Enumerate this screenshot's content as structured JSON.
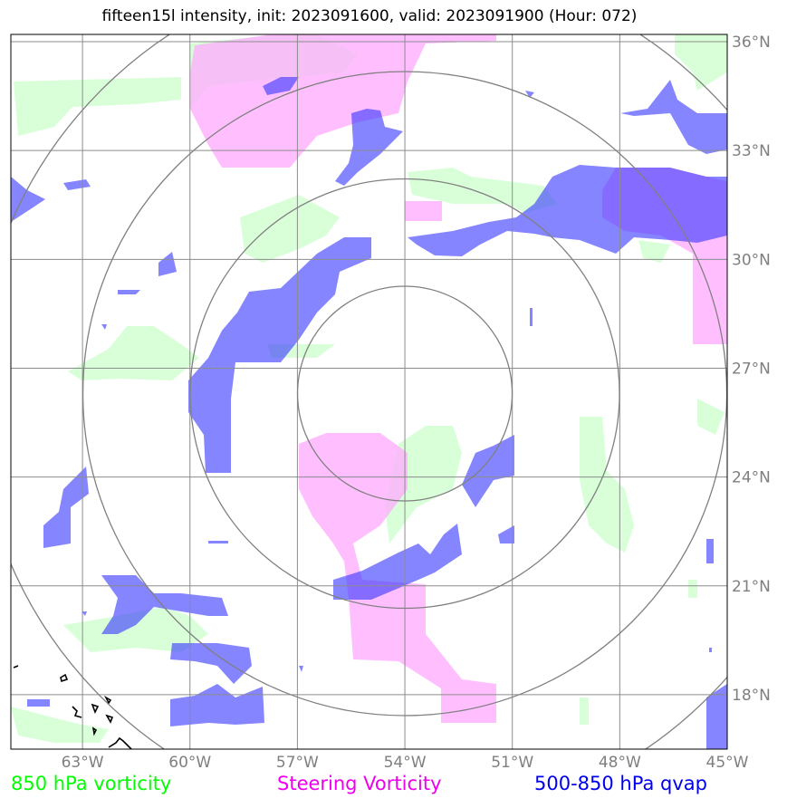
{
  "title": "fifteen15l intensity, init: 2023091600, valid: 2023091900 (Hour: 072)",
  "map": {
    "lon_range": [
      -65,
      -45
    ],
    "lat_range": [
      16.5,
      36.2
    ],
    "lon_ticks": [
      {
        "value": -63,
        "label": "63°W"
      },
      {
        "value": -60,
        "label": "60°W"
      },
      {
        "value": -57,
        "label": "57°W"
      },
      {
        "value": -54,
        "label": "54°W"
      },
      {
        "value": -51,
        "label": "51°W"
      },
      {
        "value": -48,
        "label": "48°W"
      },
      {
        "value": -45,
        "label": "45°W"
      }
    ],
    "lat_ticks": [
      {
        "value": 36,
        "label": "36°N"
      },
      {
        "value": 33,
        "label": "33°N"
      },
      {
        "value": 30,
        "label": "30°N"
      },
      {
        "value": 27,
        "label": "27°N"
      },
      {
        "value": 24,
        "label": "24°N"
      },
      {
        "value": 21,
        "label": "21°N"
      },
      {
        "value": 18,
        "label": "18°N"
      }
    ],
    "gridlines": true,
    "range_rings": {
      "center": [
        -54.0,
        26.3
      ],
      "count": 4
    },
    "colors": {
      "vorticity_850": "#ccffcc",
      "steering_vorticity": "#ffaaff",
      "qvap": "#3333ff",
      "overlap": "#6633ff"
    }
  },
  "legend": {
    "items": [
      {
        "label": "850 hPa vorticity",
        "color": "#00ff00"
      },
      {
        "label": "Steering Vorticity",
        "color": "#ee00ee"
      },
      {
        "label": "500-850 hPa qvap",
        "color": "#0000ee"
      }
    ]
  }
}
